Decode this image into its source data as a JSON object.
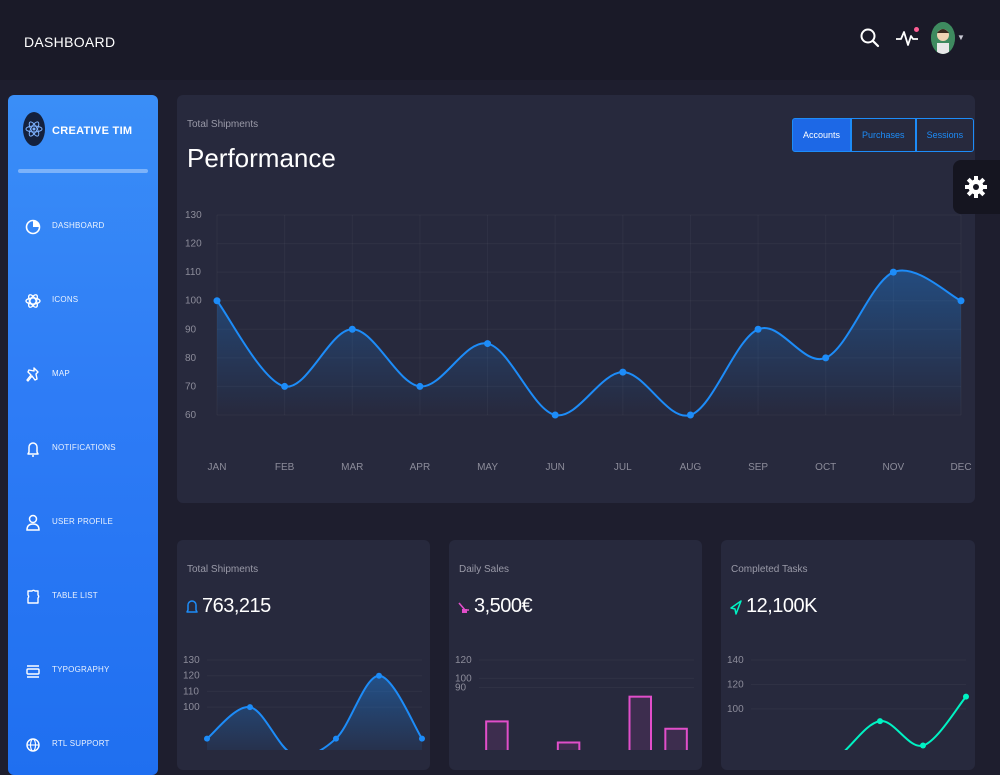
{
  "header": {
    "title": "DASHBOARD"
  },
  "sidebar": {
    "brand": "CREATIVE TIM",
    "items": [
      {
        "label": "DASHBOARD",
        "icon": "chart-pie-icon"
      },
      {
        "label": "ICONS",
        "icon": "atom-icon"
      },
      {
        "label": "MAP",
        "icon": "pin-icon"
      },
      {
        "label": "NOTIFICATIONS",
        "icon": "bell-icon"
      },
      {
        "label": "USER PROFILE",
        "icon": "user-icon"
      },
      {
        "label": "TABLE LIST",
        "icon": "puzzle-icon"
      },
      {
        "label": "TYPOGRAPHY",
        "icon": "align-center-icon"
      },
      {
        "label": "RTL SUPPORT",
        "icon": "world-icon"
      }
    ]
  },
  "performance": {
    "subtitle": "Total Shipments",
    "title": "Performance",
    "tabs": [
      "Accounts",
      "Purchases",
      "Sessions"
    ],
    "active_tab": "Accounts"
  },
  "stats": [
    {
      "subtitle": "Total Shipments",
      "value": "763,215",
      "icon": "bell-icon",
      "color": "#1d8cf8"
    },
    {
      "subtitle": "Daily Sales",
      "value": "3,500€",
      "icon": "delivery-icon",
      "color": "#e14eca"
    },
    {
      "subtitle": "Completed Tasks",
      "value": "12,100K",
      "icon": "send-icon",
      "color": "#00f2c3"
    }
  ],
  "colors": {
    "accent": "#1d8cf8",
    "pink": "#e14eca",
    "teal": "#00f2c3",
    "card": "#27293d",
    "background": "#1e1e2e"
  },
  "chart_data": [
    {
      "type": "line",
      "categories": [
        "JAN",
        "FEB",
        "MAR",
        "APR",
        "MAY",
        "JUN",
        "JUL",
        "AUG",
        "SEP",
        "OCT",
        "NOV",
        "DEC"
      ],
      "values": [
        100,
        70,
        90,
        70,
        85,
        60,
        75,
        60,
        90,
        80,
        110,
        100
      ],
      "yticks": [
        60,
        70,
        80,
        90,
        100,
        110,
        120,
        130
      ],
      "ylim": [
        60,
        130
      ],
      "grid": true
    },
    {
      "type": "line",
      "values": [
        80,
        100,
        70,
        80,
        120,
        80
      ],
      "yticks": [
        100,
        110,
        120,
        130
      ],
      "ylim": [
        60,
        130
      ]
    },
    {
      "type": "bar",
      "values": [
        53,
        20,
        30,
        10,
        80,
        45
      ],
      "yticks": [
        90,
        100,
        120
      ],
      "ylim": [
        0,
        120
      ]
    },
    {
      "type": "line",
      "values": [
        50,
        40,
        60,
        90,
        70,
        110
      ],
      "yticks": [
        100,
        120,
        140
      ],
      "ylim": [
        50,
        140
      ]
    }
  ]
}
